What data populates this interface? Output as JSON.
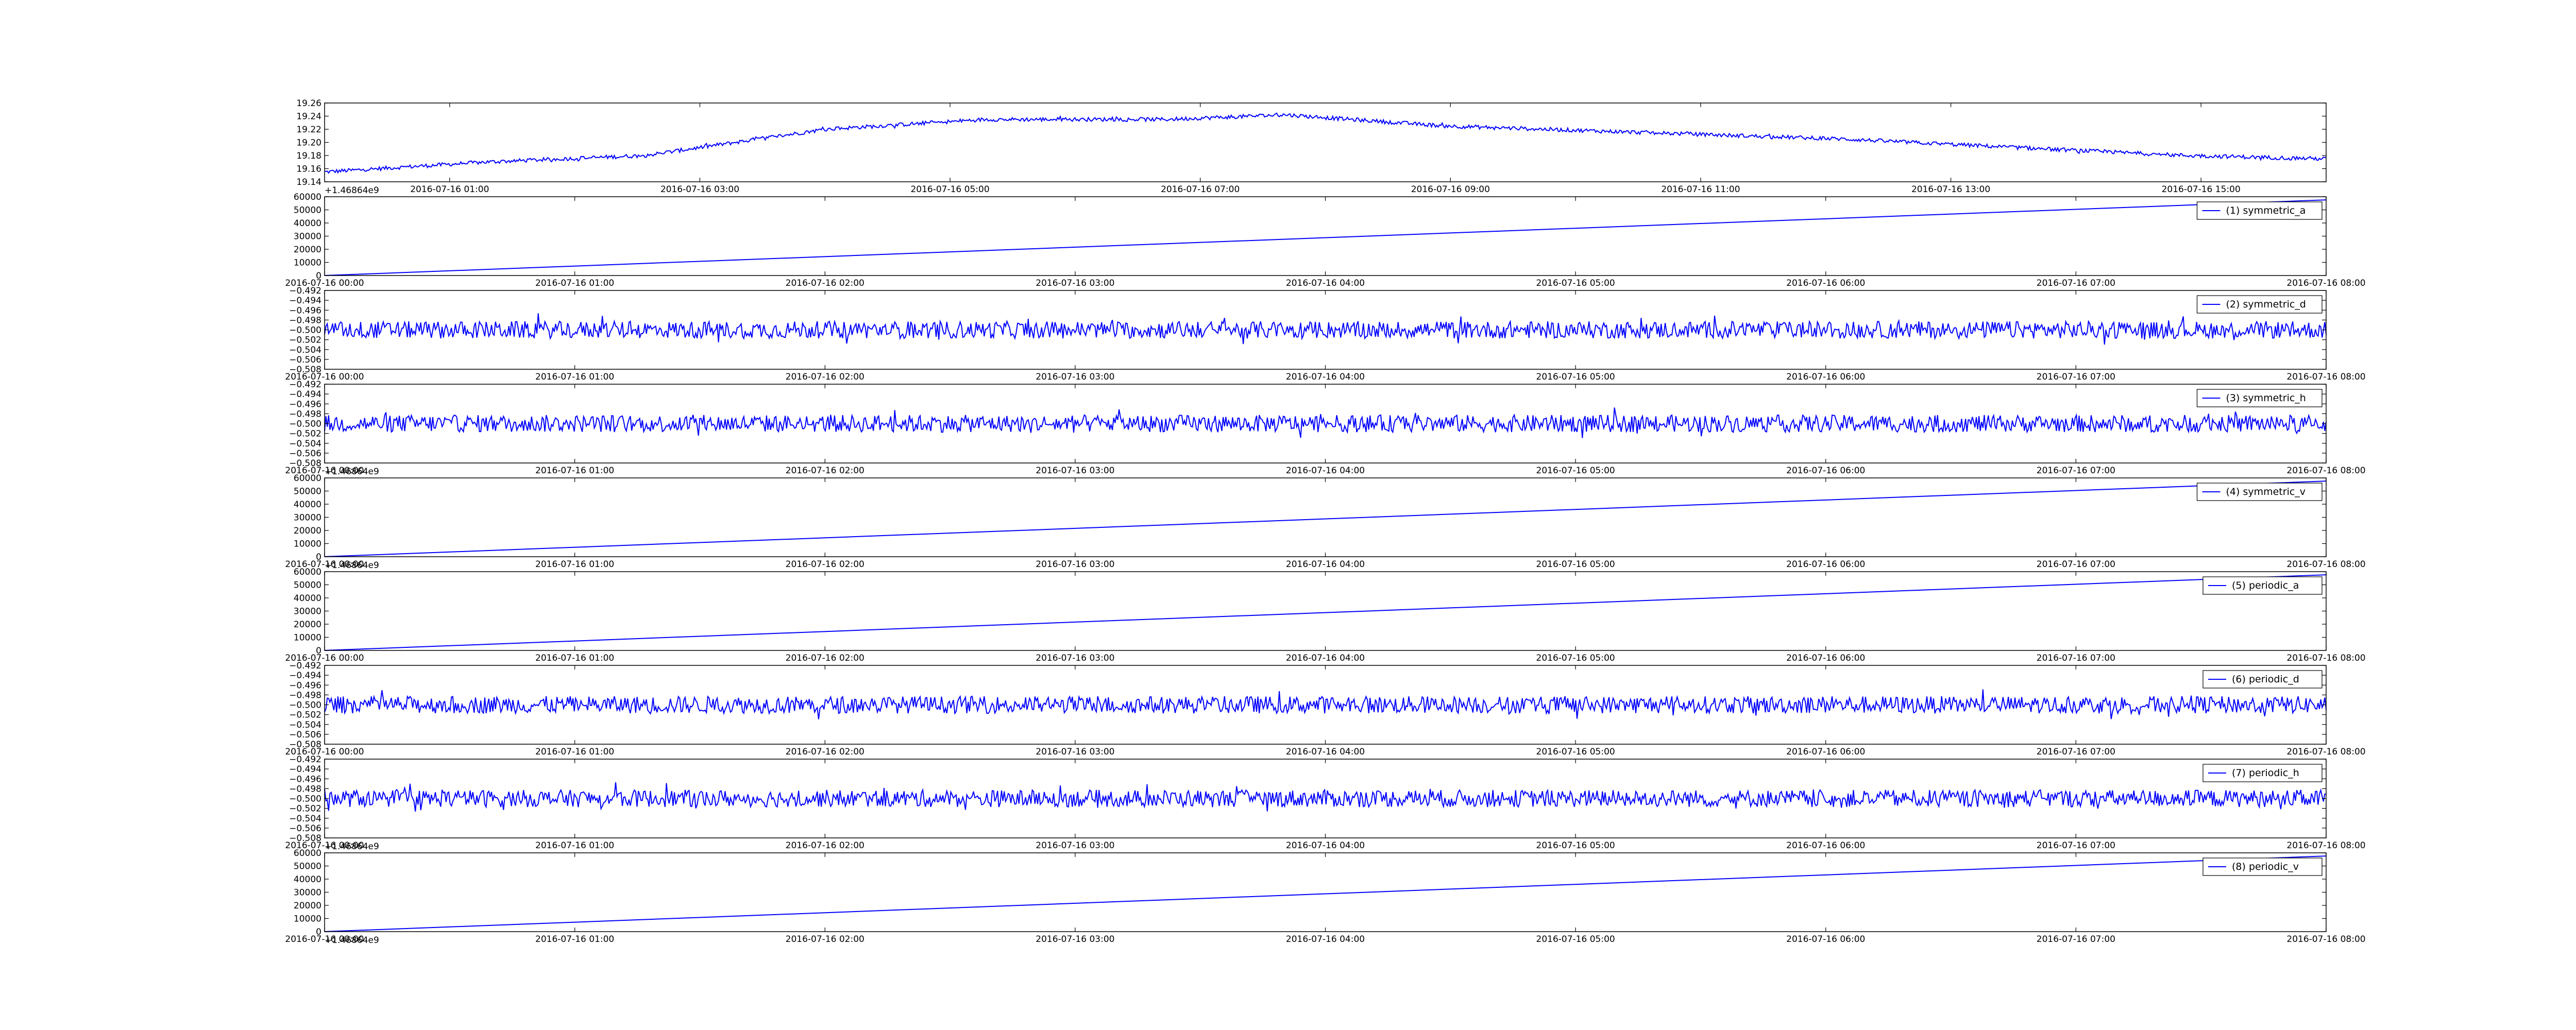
{
  "chart_data": [
    {
      "type": "line",
      "series": [
        {
          "name": "",
          "color": "#0000ff"
        }
      ],
      "x_ticks": [
        "2016-07-16 01:00",
        "2016-07-16 03:00",
        "2016-07-16 05:00",
        "2016-07-16 07:00",
        "2016-07-16 09:00",
        "2016-07-16 11:00",
        "2016-07-16 13:00",
        "2016-07-16 15:00"
      ],
      "y_ticks": [
        "19.14",
        "19.16",
        "19.18",
        "19.20",
        "19.22",
        "19.24",
        "19.26"
      ],
      "ylim": [
        19.14,
        19.26
      ],
      "offset_text": "+1.46864e9",
      "profile": [
        [
          0,
          19.155
        ],
        [
          0.08,
          19.17
        ],
        [
          0.16,
          19.18
        ],
        [
          0.25,
          19.22
        ],
        [
          0.33,
          19.235
        ],
        [
          0.42,
          19.235
        ],
        [
          0.48,
          19.242
        ],
        [
          0.56,
          19.225
        ],
        [
          0.66,
          19.215
        ],
        [
          0.76,
          19.205
        ],
        [
          0.86,
          19.19
        ],
        [
          0.93,
          19.18
        ],
        [
          1,
          19.175
        ]
      ],
      "noise": 0.006,
      "legend": null
    },
    {
      "type": "line",
      "series": [
        {
          "name": "(1) symmetric_a",
          "color": "#0000ff"
        }
      ],
      "x_ticks": [
        "2016-07-16 00:00",
        "2016-07-16 01:00",
        "2016-07-16 02:00",
        "2016-07-16 03:00",
        "2016-07-16 04:00",
        "2016-07-16 05:00",
        "2016-07-16 06:00",
        "2016-07-16 07:00",
        "2016-07-16 08:00"
      ],
      "y_ticks": [
        "0",
        "10000",
        "20000",
        "30000",
        "40000",
        "50000",
        "60000"
      ],
      "ylim": [
        0,
        60000
      ],
      "profile": [
        [
          0,
          0
        ],
        [
          1,
          57600
        ]
      ],
      "noise": 0,
      "legend": "upper right"
    },
    {
      "type": "line",
      "series": [
        {
          "name": "(2) symmetric_d",
          "color": "#0000ff"
        }
      ],
      "x_ticks": [
        "2016-07-16 00:00",
        "2016-07-16 01:00",
        "2016-07-16 02:00",
        "2016-07-16 03:00",
        "2016-07-16 04:00",
        "2016-07-16 05:00",
        "2016-07-16 06:00",
        "2016-07-16 07:00",
        "2016-07-16 08:00"
      ],
      "y_ticks": [
        "−0.508",
        "−0.506",
        "−0.504",
        "−0.502",
        "−0.500",
        "−0.498",
        "−0.496",
        "−0.494",
        "−0.492"
      ],
      "ylim": [
        -0.508,
        -0.492
      ],
      "profile": [
        [
          0,
          -0.5
        ],
        [
          1,
          -0.5
        ]
      ],
      "noise": 0.0035,
      "legend": "upper right"
    },
    {
      "type": "line",
      "series": [
        {
          "name": "(3) symmetric_h",
          "color": "#0000ff"
        }
      ],
      "x_ticks": [
        "2016-07-16 00:00",
        "2016-07-16 01:00",
        "2016-07-16 02:00",
        "2016-07-16 03:00",
        "2016-07-16 04:00",
        "2016-07-16 05:00",
        "2016-07-16 06:00",
        "2016-07-16 07:00",
        "2016-07-16 08:00"
      ],
      "y_ticks": [
        "−0.508",
        "−0.506",
        "−0.504",
        "−0.502",
        "−0.500",
        "−0.498",
        "−0.496",
        "−0.494",
        "−0.492"
      ],
      "ylim": [
        -0.508,
        -0.492
      ],
      "offset_text": "+1.46864e9",
      "profile": [
        [
          0,
          -0.5
        ],
        [
          1,
          -0.5
        ]
      ],
      "noise": 0.0035,
      "legend": "upper right"
    },
    {
      "type": "line",
      "series": [
        {
          "name": "(4) symmetric_v",
          "color": "#0000ff"
        }
      ],
      "x_ticks": [
        "2016-07-16 00:00",
        "2016-07-16 01:00",
        "2016-07-16 02:00",
        "2016-07-16 03:00",
        "2016-07-16 04:00",
        "2016-07-16 05:00",
        "2016-07-16 06:00",
        "2016-07-16 07:00",
        "2016-07-16 08:00"
      ],
      "y_ticks": [
        "0",
        "10000",
        "20000",
        "30000",
        "40000",
        "50000",
        "60000"
      ],
      "ylim": [
        0,
        60000
      ],
      "offset_text": "+1.46864e9",
      "profile": [
        [
          0,
          0
        ],
        [
          1,
          57600
        ]
      ],
      "noise": 0,
      "legend": "upper right"
    },
    {
      "type": "line",
      "series": [
        {
          "name": "(5) periodic_a",
          "color": "#0000ff"
        }
      ],
      "x_ticks": [
        "2016-07-16 00:00",
        "2016-07-16 01:00",
        "2016-07-16 02:00",
        "2016-07-16 03:00",
        "2016-07-16 04:00",
        "2016-07-16 05:00",
        "2016-07-16 06:00",
        "2016-07-16 07:00",
        "2016-07-16 08:00"
      ],
      "y_ticks": [
        "0",
        "10000",
        "20000",
        "30000",
        "40000",
        "50000",
        "60000"
      ],
      "ylim": [
        0,
        60000
      ],
      "profile": [
        [
          0,
          0
        ],
        [
          1,
          57600
        ]
      ],
      "noise": 0,
      "legend": "upper right"
    },
    {
      "type": "line",
      "series": [
        {
          "name": "(6) periodic_d",
          "color": "#0000ff"
        }
      ],
      "x_ticks": [
        "2016-07-16 00:00",
        "2016-07-16 01:00",
        "2016-07-16 02:00",
        "2016-07-16 03:00",
        "2016-07-16 04:00",
        "2016-07-16 05:00",
        "2016-07-16 06:00",
        "2016-07-16 07:00",
        "2016-07-16 08:00"
      ],
      "y_ticks": [
        "−0.508",
        "−0.506",
        "−0.504",
        "−0.502",
        "−0.500",
        "−0.498",
        "−0.496",
        "−0.494",
        "−0.492"
      ],
      "ylim": [
        -0.508,
        -0.492
      ],
      "profile": [
        [
          0,
          -0.5
        ],
        [
          1,
          -0.5
        ]
      ],
      "noise": 0.0035,
      "legend": "upper right"
    },
    {
      "type": "line",
      "series": [
        {
          "name": "(7) periodic_h",
          "color": "#0000ff"
        }
      ],
      "x_ticks": [
        "2016-07-16 00:00",
        "2016-07-16 01:00",
        "2016-07-16 02:00",
        "2016-07-16 03:00",
        "2016-07-16 04:00",
        "2016-07-16 05:00",
        "2016-07-16 06:00",
        "2016-07-16 07:00",
        "2016-07-16 08:00"
      ],
      "y_ticks": [
        "−0.508",
        "−0.506",
        "−0.504",
        "−0.502",
        "−0.500",
        "−0.498",
        "−0.496",
        "−0.494",
        "−0.492"
      ],
      "ylim": [
        -0.508,
        -0.492
      ],
      "offset_text": "+1.46864e9",
      "profile": [
        [
          0,
          -0.5
        ],
        [
          1,
          -0.5
        ]
      ],
      "noise": 0.0035,
      "legend": "upper right"
    },
    {
      "type": "line",
      "series": [
        {
          "name": "(8) periodic_v",
          "color": "#0000ff"
        }
      ],
      "x_ticks": [
        "2016-07-16 00:00",
        "2016-07-16 01:00",
        "2016-07-16 02:00",
        "2016-07-16 03:00",
        "2016-07-16 04:00",
        "2016-07-16 05:00",
        "2016-07-16 06:00",
        "2016-07-16 07:00",
        "2016-07-16 08:00"
      ],
      "y_ticks": [
        "0",
        "10000",
        "20000",
        "30000",
        "40000",
        "50000",
        "60000"
      ],
      "ylim": [
        0,
        60000
      ],
      "offset_text": "+1.46864e9",
      "profile": [
        [
          0,
          0
        ],
        [
          1,
          57600
        ]
      ],
      "noise": 0,
      "legend": "upper right"
    }
  ]
}
